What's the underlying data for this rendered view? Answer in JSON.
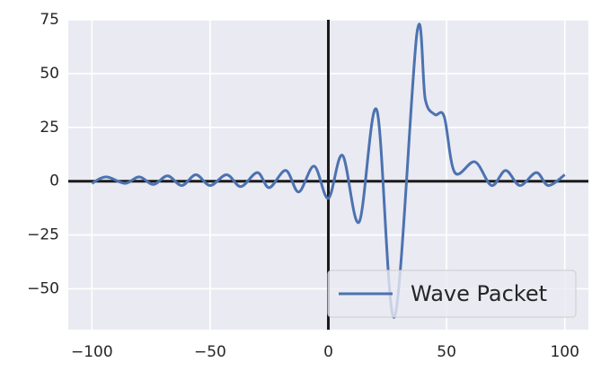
{
  "chart_data": {
    "type": "line",
    "xlim": [
      -110,
      110
    ],
    "ylim": [
      -69,
      75
    ],
    "xticks": [
      {
        "value": -100,
        "label": "−100"
      },
      {
        "value": -50,
        "label": "−50"
      },
      0,
      50,
      100
    ],
    "yticks": [
      {
        "value": -50,
        "label": "−50"
      },
      {
        "value": -25,
        "label": "−25"
      },
      0,
      25,
      50,
      75
    ],
    "grid": true,
    "legend": "lower right",
    "series": [
      {
        "name": "Wave Packet",
        "color": "#4c72b0",
        "x": [
          -100,
          -94,
          -86,
          -80,
          -74,
          -68,
          -62,
          -56,
          -50,
          -43,
          -37,
          -30,
          -25,
          -18,
          -12.5,
          -6,
          0,
          6,
          13,
          20.5,
          28,
          37.5,
          41,
          45,
          49,
          53.5,
          62,
          69,
          75,
          81,
          88,
          93,
          100
        ],
        "values": [
          -1,
          2,
          -1,
          2,
          -1.5,
          2.5,
          -2,
          3,
          -2,
          3,
          -2.5,
          4,
          -3,
          5,
          -5,
          7,
          -8,
          12,
          -19,
          33,
          -63,
          69,
          38,
          31,
          30,
          4,
          9,
          -2,
          5,
          -2,
          4,
          -2,
          3
        ]
      }
    ]
  }
}
